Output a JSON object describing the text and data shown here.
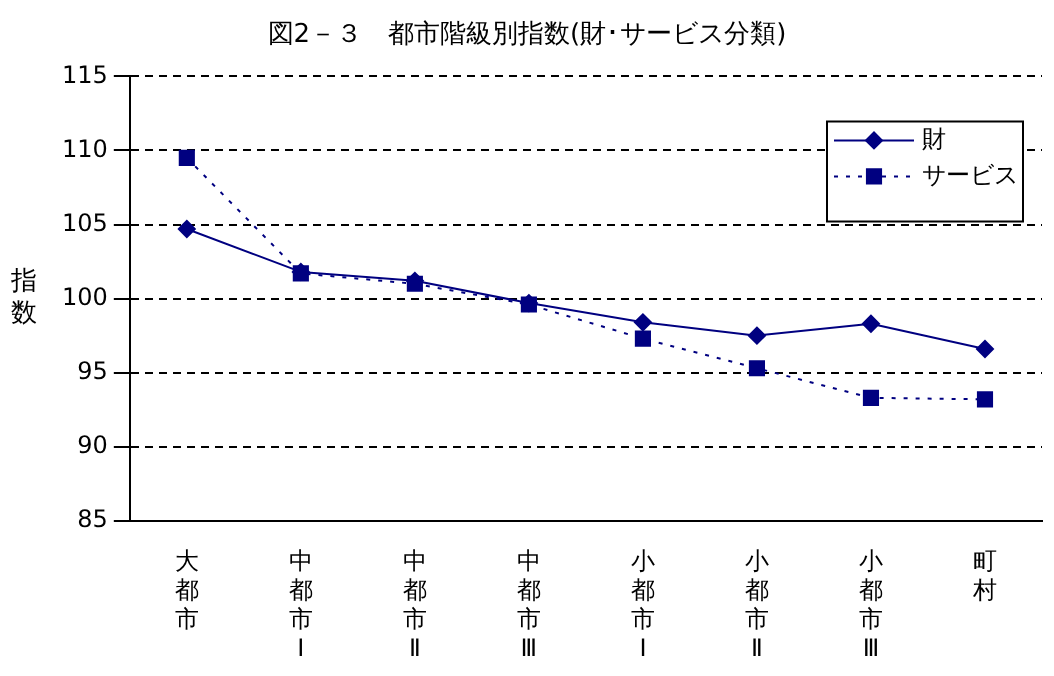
{
  "chart_data": {
    "type": "line",
    "title": "図2－３　都市階級別指数(財･サービス分類)",
    "ylabel": "指数",
    "categories": [
      "大都市",
      "中都市Ⅰ",
      "中都市Ⅱ",
      "中都市Ⅲ",
      "小都市Ⅰ",
      "小都市Ⅱ",
      "小都市Ⅲ",
      "町村"
    ],
    "series": [
      {
        "name": "財",
        "color": "#000080",
        "marker": "diamond",
        "line_style": "solid",
        "values": [
          104.7,
          101.8,
          101.2,
          99.7,
          98.4,
          97.5,
          98.3,
          96.6
        ]
      },
      {
        "name": "サービス",
        "color": "#000080",
        "marker": "square",
        "line_style": "dotted",
        "values": [
          109.5,
          101.7,
          101.0,
          99.6,
          97.3,
          95.3,
          93.3,
          93.2
        ]
      }
    ],
    "ylim": [
      85,
      115
    ],
    "yticks": [
      85,
      90,
      95,
      100,
      105,
      110,
      115
    ],
    "grid": "y",
    "legend": "top right"
  }
}
